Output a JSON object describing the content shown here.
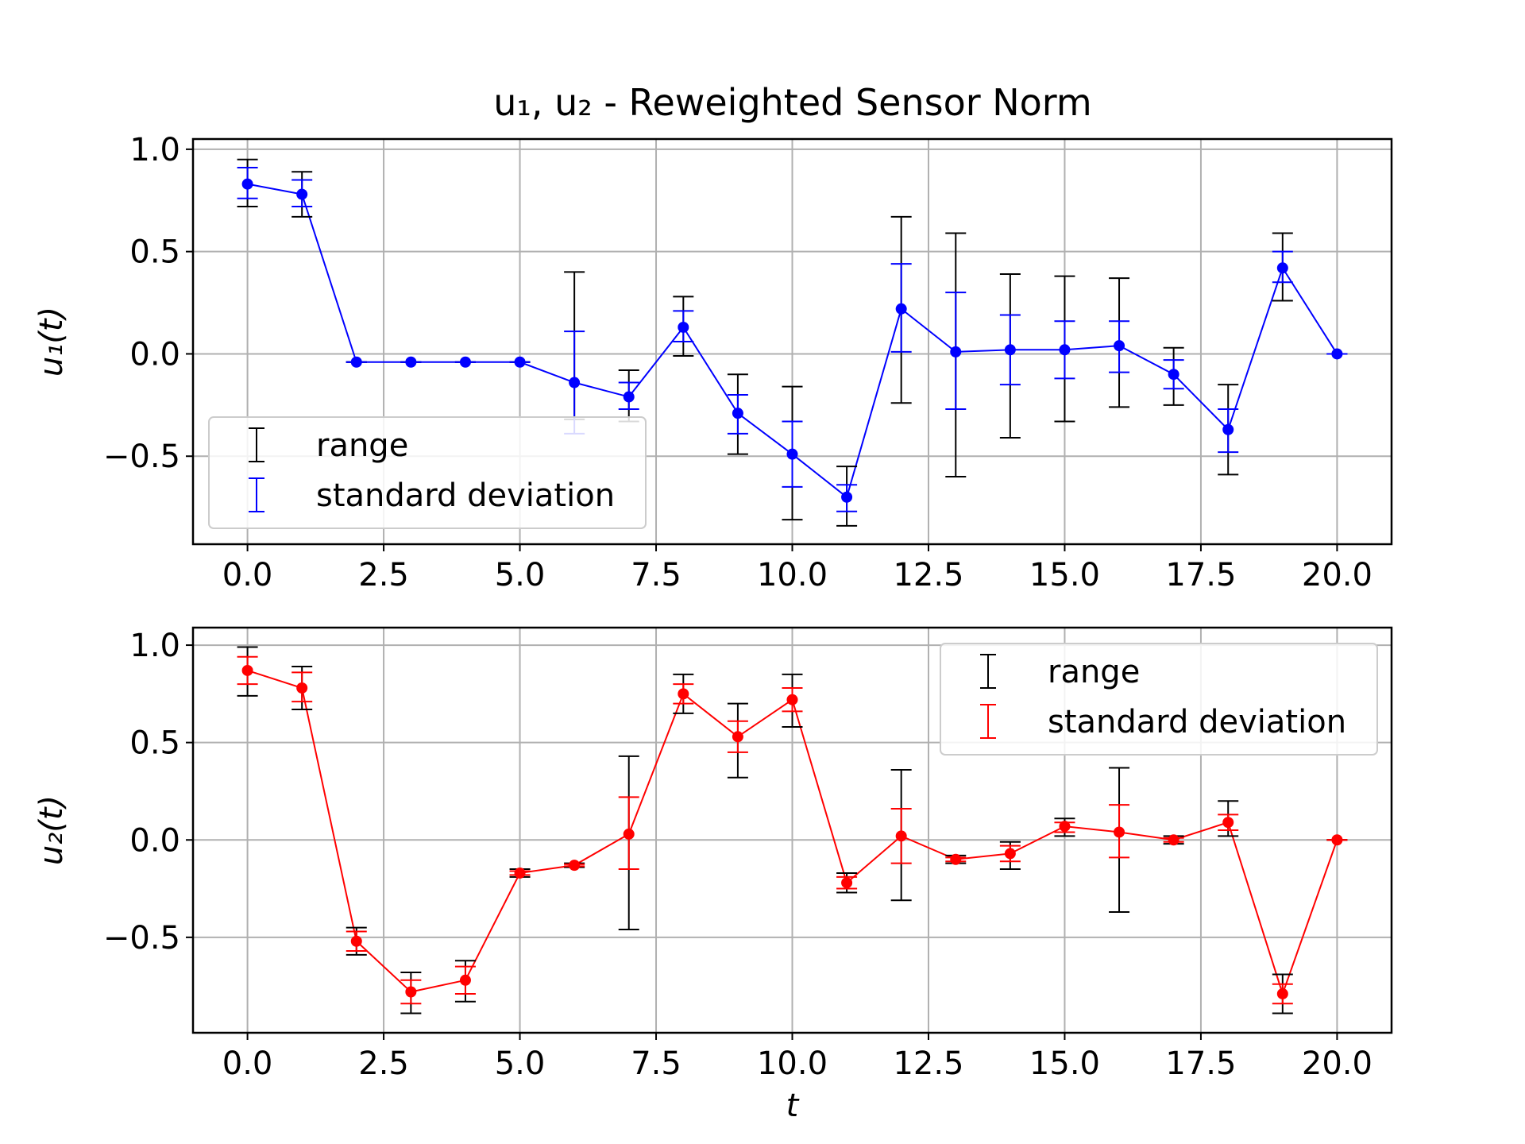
{
  "title": "u₁, u₂ - Reweighted Sensor Norm",
  "chart_data": [
    {
      "type": "line",
      "title": "u₁, u₂ - Reweighted Sensor Norm",
      "xlabel": "t",
      "ylabel": "u₁(t)",
      "xlim": [
        -1,
        21
      ],
      "ylim": [
        -0.93,
        1.05
      ],
      "xticks": [
        "0.0",
        "2.5",
        "5.0",
        "7.5",
        "10.0",
        "12.5",
        "15.0",
        "17.5",
        "20.0"
      ],
      "yticks": [
        "1.0",
        "0.5",
        "0.0",
        "−0.5"
      ],
      "grid": true,
      "color": "#0000ff",
      "legend_position": "lower-left",
      "legend": [
        "range",
        "standard deviation"
      ],
      "x": [
        0,
        1,
        2,
        3,
        4,
        5,
        6,
        7,
        8,
        9,
        10,
        11,
        12,
        13,
        14,
        15,
        16,
        17,
        18,
        19,
        20
      ],
      "mean": [
        0.83,
        0.78,
        -0.04,
        -0.04,
        -0.04,
        -0.04,
        -0.14,
        -0.21,
        0.13,
        -0.29,
        -0.49,
        -0.7,
        0.22,
        0.01,
        0.02,
        0.02,
        0.04,
        -0.1,
        -0.37,
        0.42,
        0.0
      ],
      "range_low": [
        0.72,
        0.67,
        -0.04,
        -0.04,
        -0.04,
        -0.04,
        -0.32,
        -0.33,
        -0.01,
        -0.49,
        -0.81,
        -0.84,
        -0.24,
        -0.6,
        -0.41,
        -0.33,
        -0.26,
        -0.25,
        -0.59,
        0.26,
        0.0
      ],
      "range_high": [
        0.95,
        0.89,
        -0.04,
        -0.04,
        -0.04,
        -0.04,
        0.4,
        -0.08,
        0.28,
        -0.1,
        -0.16,
        -0.55,
        0.67,
        0.59,
        0.39,
        0.38,
        0.37,
        0.03,
        -0.15,
        0.59,
        0.0
      ],
      "std_low": [
        0.76,
        0.72,
        -0.04,
        -0.04,
        -0.04,
        -0.04,
        -0.39,
        -0.27,
        0.06,
        -0.39,
        -0.65,
        -0.77,
        0.01,
        -0.27,
        -0.15,
        -0.12,
        -0.09,
        -0.17,
        -0.48,
        0.35,
        0.0
      ],
      "std_high": [
        0.91,
        0.85,
        -0.04,
        -0.04,
        -0.04,
        -0.04,
        0.11,
        -0.14,
        0.21,
        -0.2,
        -0.33,
        -0.64,
        0.44,
        0.3,
        0.19,
        0.16,
        0.16,
        -0.03,
        -0.27,
        0.5,
        0.0
      ]
    },
    {
      "type": "line",
      "xlabel": "t",
      "ylabel": "u₂(t)",
      "xlim": [
        -1,
        21
      ],
      "ylim": [
        -0.99,
        1.09
      ],
      "xticks": [
        "0.0",
        "2.5",
        "5.0",
        "7.5",
        "10.0",
        "12.5",
        "15.0",
        "17.5",
        "20.0"
      ],
      "yticks": [
        "1.0",
        "0.5",
        "0.0",
        "−0.5"
      ],
      "grid": true,
      "color": "#ff0000",
      "legend_position": "upper-right",
      "legend": [
        "range",
        "standard deviation"
      ],
      "x": [
        0,
        1,
        2,
        3,
        4,
        5,
        6,
        7,
        8,
        9,
        10,
        11,
        12,
        13,
        14,
        15,
        16,
        17,
        18,
        19,
        20
      ],
      "mean": [
        0.87,
        0.78,
        -0.52,
        -0.78,
        -0.72,
        -0.17,
        -0.13,
        0.03,
        0.75,
        0.53,
        0.72,
        -0.22,
        0.02,
        -0.1,
        -0.07,
        0.07,
        0.04,
        0.0,
        0.09,
        -0.79,
        0.0
      ],
      "range_low": [
        0.74,
        0.67,
        -0.59,
        -0.89,
        -0.83,
        -0.19,
        -0.14,
        -0.46,
        0.65,
        0.32,
        0.58,
        -0.27,
        -0.31,
        -0.12,
        -0.15,
        0.02,
        -0.37,
        -0.02,
        0.02,
        -0.89,
        0.0
      ],
      "range_high": [
        0.99,
        0.89,
        -0.45,
        -0.68,
        -0.62,
        -0.15,
        -0.12,
        0.43,
        0.85,
        0.7,
        0.85,
        -0.17,
        0.36,
        -0.08,
        -0.01,
        0.11,
        0.37,
        0.02,
        0.2,
        -0.69,
        0.0
      ],
      "std_low": [
        0.8,
        0.71,
        -0.57,
        -0.84,
        -0.79,
        -0.18,
        -0.135,
        -0.15,
        0.7,
        0.45,
        0.66,
        -0.25,
        -0.12,
        -0.11,
        -0.11,
        0.04,
        -0.09,
        -0.01,
        0.05,
        -0.84,
        0.0
      ],
      "std_high": [
        0.94,
        0.86,
        -0.47,
        -0.72,
        -0.65,
        -0.16,
        -0.125,
        0.22,
        0.8,
        0.61,
        0.78,
        -0.19,
        0.16,
        -0.09,
        -0.03,
        0.09,
        0.18,
        0.01,
        0.13,
        -0.74,
        0.0
      ]
    }
  ]
}
